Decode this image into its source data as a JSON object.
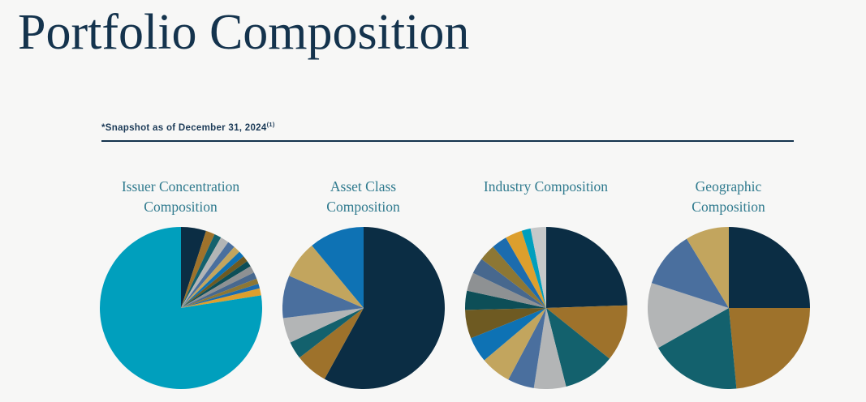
{
  "page": {
    "title": "Portfolio Composition",
    "note": "*Snapshot as of December 31, 2024",
    "note_superscript": "(1)"
  },
  "colors": {
    "background": "#f7f7f6",
    "title_text": "#14334d",
    "note_text": "#1b3a57",
    "rule": "#14334d",
    "chart_title_text": "#2f7a8e"
  },
  "palette": {
    "navy": "#0b2d44",
    "brown": "#9e722b",
    "teal": "#13616d",
    "light-gray": "#b3b5b6",
    "steel-blue": "#4a6f9e",
    "khaki": "#c2a55e",
    "bright-blue": "#0e72b4",
    "dark-olive": "#6e5a22",
    "dark-teal": "#0d4e57",
    "gray": "#8e9193",
    "slate-blue": "#47688e",
    "olive": "#8d7734",
    "blue": "#1c6cae",
    "amber": "#dd9f2d",
    "cyan": "#009fbd",
    "silver": "#c6c8c9"
  },
  "chart_data": [
    {
      "type": "pie",
      "title": "Issuer Concentration Composition",
      "title_lines": [
        "Issuer Concentration",
        "Composition"
      ],
      "units": "percent",
      "start_angle_deg": 0,
      "direction": "clockwise",
      "legend": "none",
      "data_labels": "none",
      "slices": [
        {
          "color": "navy",
          "value": 5.0
        },
        {
          "color": "brown",
          "value": 1.8
        },
        {
          "color": "teal",
          "value": 1.4
        },
        {
          "color": "light-gray",
          "value": 1.7
        },
        {
          "color": "steel-blue",
          "value": 1.5
        },
        {
          "color": "khaki",
          "value": 1.4
        },
        {
          "color": "bright-blue",
          "value": 1.2
        },
        {
          "color": "dark-olive",
          "value": 1.2
        },
        {
          "color": "dark-teal",
          "value": 1.2
        },
        {
          "color": "gray",
          "value": 1.4
        },
        {
          "color": "slate-blue",
          "value": 1.3
        },
        {
          "color": "olive",
          "value": 1.1
        },
        {
          "color": "blue",
          "value": 0.9
        },
        {
          "color": "amber",
          "value": 1.4
        },
        {
          "color": "cyan",
          "value": 77.5
        }
      ]
    },
    {
      "type": "pie",
      "title": "Asset Class Composition",
      "title_lines": [
        "Asset Class",
        "Composition"
      ],
      "units": "percent",
      "start_angle_deg": 0,
      "direction": "clockwise",
      "legend": "none",
      "data_labels": "none",
      "slices": [
        {
          "color": "navy",
          "value": 58.0
        },
        {
          "color": "brown",
          "value": 6.5
        },
        {
          "color": "teal",
          "value": 3.5
        },
        {
          "color": "light-gray",
          "value": 5.0
        },
        {
          "color": "steel-blue",
          "value": 8.5
        },
        {
          "color": "khaki",
          "value": 7.5
        },
        {
          "color": "bright-blue",
          "value": 11.0
        }
      ]
    },
    {
      "type": "pie",
      "title": "Industry Composition",
      "title_lines": [
        "Industry Composition"
      ],
      "units": "percent",
      "start_angle_deg": 0,
      "direction": "clockwise",
      "legend": "none",
      "data_labels": "none",
      "slices": [
        {
          "color": "navy",
          "value": 24.5
        },
        {
          "color": "brown",
          "value": 11.3
        },
        {
          "color": "teal",
          "value": 10.3
        },
        {
          "color": "light-gray",
          "value": 6.4
        },
        {
          "color": "steel-blue",
          "value": 5.3
        },
        {
          "color": "khaki",
          "value": 6.1
        },
        {
          "color": "bright-blue",
          "value": 5.1
        },
        {
          "color": "dark-olive",
          "value": 5.7
        },
        {
          "color": "dark-teal",
          "value": 3.8
        },
        {
          "color": "gray",
          "value": 3.7
        },
        {
          "color": "slate-blue",
          "value": 3.2
        },
        {
          "color": "olive",
          "value": 3.3
        },
        {
          "color": "blue",
          "value": 3.1
        },
        {
          "color": "amber",
          "value": 3.4
        },
        {
          "color": "cyan",
          "value": 1.8
        },
        {
          "color": "silver",
          "value": 3.1
        }
      ]
    },
    {
      "type": "pie",
      "title": "Geographic Composition",
      "title_lines": [
        "Geographic",
        "Composition"
      ],
      "units": "percent",
      "start_angle_deg": 0,
      "direction": "clockwise",
      "legend": "none",
      "data_labels": "none",
      "slices": [
        {
          "color": "navy",
          "value": 25.0
        },
        {
          "color": "brown",
          "value": 23.5
        },
        {
          "color": "teal",
          "value": 18.3
        },
        {
          "color": "light-gray",
          "value": 13.2
        },
        {
          "color": "steel-blue",
          "value": 11.3
        },
        {
          "color": "khaki",
          "value": 8.7
        }
      ]
    }
  ]
}
